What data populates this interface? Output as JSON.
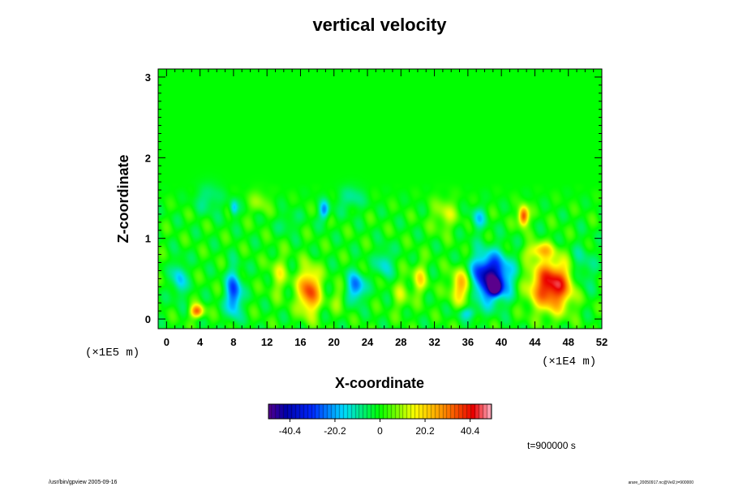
{
  "chart_data": {
    "type": "heatmap",
    "title": "vertical velocity",
    "xlabel": "X-coordinate",
    "ylabel": "Z-coordinate",
    "x_unit": "(×1E4 m)",
    "y_unit": "(×1E5 m)",
    "xlim": [
      -1,
      52
    ],
    "ylim": [
      -0.12,
      3.1
    ],
    "x_ticks": [
      "0",
      "4",
      "8",
      "12",
      "16",
      "20",
      "24",
      "28",
      "32",
      "36",
      "40",
      "44",
      "48",
      "52"
    ],
    "x_tick_values": [
      0,
      4,
      8,
      12,
      16,
      20,
      24,
      28,
      32,
      36,
      40,
      44,
      48,
      52
    ],
    "y_ticks": [
      "0",
      "1",
      "2",
      "3"
    ],
    "y_tick_values": [
      0,
      1,
      2,
      3
    ],
    "colorbar": {
      "min": -50,
      "max": 50,
      "tick_labels": [
        "-40.4",
        "-20.2",
        "0",
        "20.2",
        "40.4"
      ],
      "tick_values": [
        -40.4,
        -20.2,
        0,
        20.2,
        40.4
      ]
    },
    "background_value": 0,
    "features": [
      {
        "x": 46.0,
        "z": 0.42,
        "rx": 2.6,
        "rz": 0.3,
        "value": 45
      },
      {
        "x": 38.6,
        "z": 0.52,
        "rx": 2.4,
        "rz": 0.28,
        "value": -46
      },
      {
        "x": 39.2,
        "z": 0.4,
        "rx": 0.6,
        "rz": 0.08,
        "value": -58
      },
      {
        "x": 17.0,
        "z": 0.35,
        "rx": 1.3,
        "rz": 0.28,
        "value": 36
      },
      {
        "x": 35.3,
        "z": 0.42,
        "rx": 1.4,
        "rz": 0.22,
        "value": 28
      },
      {
        "x": 42.6,
        "z": 1.28,
        "rx": 0.6,
        "rz": 0.12,
        "value": 40
      },
      {
        "x": 8.0,
        "z": 0.32,
        "rx": 0.9,
        "rz": 0.28,
        "value": -30
      },
      {
        "x": 22.6,
        "z": 0.4,
        "rx": 1.0,
        "rz": 0.18,
        "value": -26
      },
      {
        "x": 3.6,
        "z": 0.1,
        "rx": 0.8,
        "rz": 0.08,
        "value": 32
      },
      {
        "x": 1.5,
        "z": 0.5,
        "rx": 0.8,
        "rz": 0.22,
        "value": -18
      },
      {
        "x": 18.8,
        "z": 1.35,
        "rx": 0.6,
        "rz": 0.12,
        "value": -22
      },
      {
        "x": 8.0,
        "z": 1.38,
        "rx": 0.5,
        "rz": 0.1,
        "value": -18
      },
      {
        "x": 26.0,
        "z": 0.7,
        "rx": 0.9,
        "rz": 0.18,
        "value": -15
      },
      {
        "x": 30.2,
        "z": 0.5,
        "rx": 0.9,
        "rz": 0.2,
        "value": 16
      },
      {
        "x": 13.4,
        "z": 0.55,
        "rx": 1.1,
        "rz": 0.25,
        "value": 12
      },
      {
        "x": 11.0,
        "z": 1.45,
        "rx": 1.2,
        "rz": 0.15,
        "value": 9
      },
      {
        "x": 33.2,
        "z": 1.3,
        "rx": 1.5,
        "rz": 0.2,
        "value": 12
      },
      {
        "x": 22.0,
        "z": 1.5,
        "rx": 1.5,
        "rz": 0.15,
        "value": -10
      },
      {
        "x": 5.0,
        "z": 1.5,
        "rx": 1.5,
        "rz": 0.18,
        "value": -9
      },
      {
        "x": 37.2,
        "z": 1.25,
        "rx": 0.9,
        "rz": 0.15,
        "value": -14
      },
      {
        "x": 49.5,
        "z": 0.6,
        "rx": 1.5,
        "rz": 0.3,
        "value": -12
      },
      {
        "x": 28.0,
        "z": 0.3,
        "rx": 1.0,
        "rz": 0.2,
        "value": 10
      },
      {
        "x": 44.5,
        "z": 0.85,
        "rx": 1.6,
        "rz": 0.1,
        "value": 20
      },
      {
        "x": 36.0,
        "z": 0.08,
        "rx": 1.2,
        "rz": 0.08,
        "value": -14
      },
      {
        "x": 20.5,
        "z": 0.25,
        "rx": 1.0,
        "rz": 0.15,
        "value": 8
      },
      {
        "x": 14.5,
        "z": 1.2,
        "rx": 1.0,
        "rz": 0.12,
        "value": -8
      }
    ],
    "annotation": "t=900000 s"
  },
  "footer": {
    "left": "/usr/bin/gpview 2005-09-16",
    "right": "arare_20050917.nc@Vel2,t=900000"
  },
  "colors": {
    "green": "#00ff00",
    "frame": "#000000"
  }
}
